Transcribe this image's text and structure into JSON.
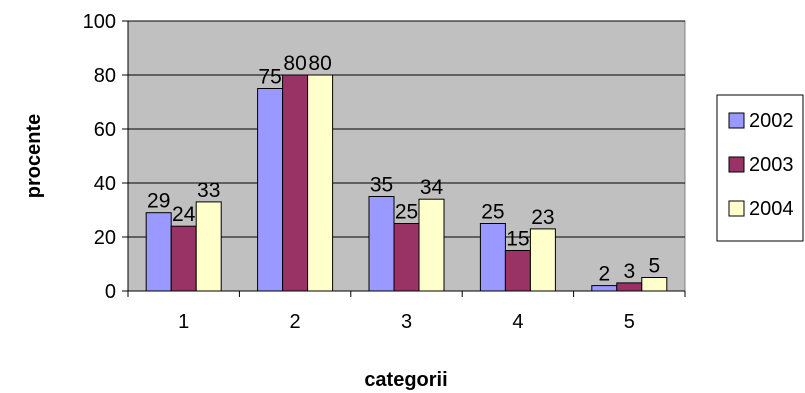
{
  "chart_data": {
    "type": "bar",
    "categories": [
      "1",
      "2",
      "3",
      "4",
      "5"
    ],
    "series": [
      {
        "name": "2002",
        "values": [
          29,
          75,
          35,
          25,
          2
        ],
        "color": "#9999ff"
      },
      {
        "name": "2003",
        "values": [
          24,
          80,
          25,
          15,
          3
        ],
        "color": "#993366"
      },
      {
        "name": "2004",
        "values": [
          33,
          80,
          34,
          23,
          5
        ],
        "color": "#ffffcc"
      }
    ],
    "xlabel": "categorii",
    "ylabel": "procente",
    "ylim": [
      0,
      100
    ],
    "yticks": [
      "0",
      "20",
      "40",
      "60",
      "80",
      "100"
    ],
    "grid": true,
    "legend_position": "right",
    "plot_background": "#c0c0c0",
    "data_labels": true
  }
}
